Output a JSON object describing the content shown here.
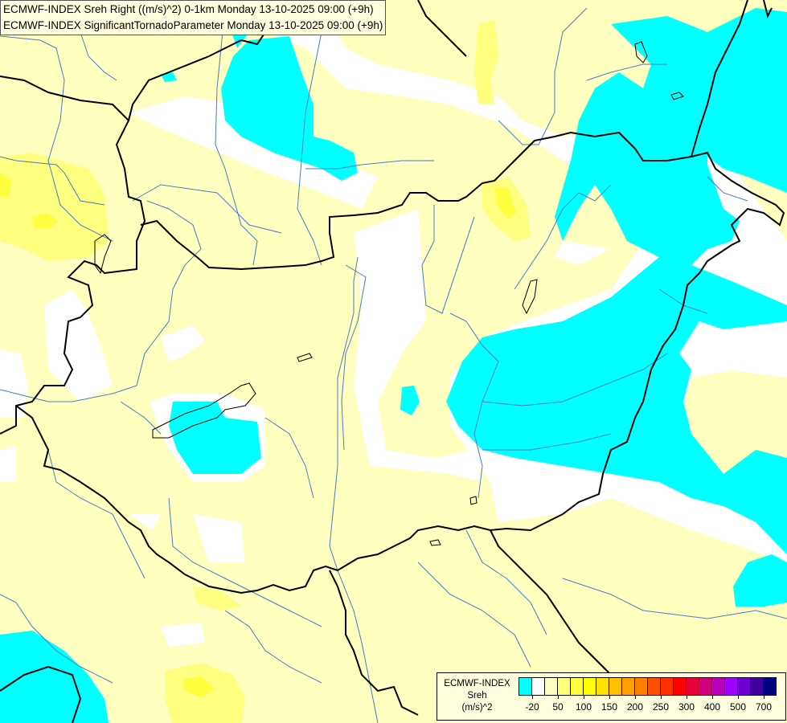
{
  "header": {
    "line1": "ECMWF-INDEX Sreh Right ((m/s)^2) 0-1km Monday 13-10-2025 09:00 (+9h)",
    "line2": "ECMWF-INDEX SignificantTornadoParameter Monday 13-10-2025 09:00 (+9h)"
  },
  "legend": {
    "model": "ECMWF-INDEX",
    "parameter": "Sreh",
    "unit": "(m/s)^2",
    "colors": [
      "#00ffff",
      "#ffffff",
      "#ffffc0",
      "#ffff80",
      "#ffff40",
      "#ffff00",
      "#ffe000",
      "#ffc000",
      "#ffa000",
      "#ff8000",
      "#ff5000",
      "#ff3000",
      "#ff0000",
      "#e8003c",
      "#d0007c",
      "#b800b8",
      "#a000ff",
      "#7000d0",
      "#4000a0",
      "#000080"
    ],
    "tick_labels": [
      "-20",
      "50",
      "100",
      "150",
      "200",
      "250",
      "300",
      "400",
      "500",
      "700"
    ]
  },
  "map_colors": {
    "background": "#ffffc0",
    "border": "#000000",
    "river": "#4a7ac8"
  }
}
